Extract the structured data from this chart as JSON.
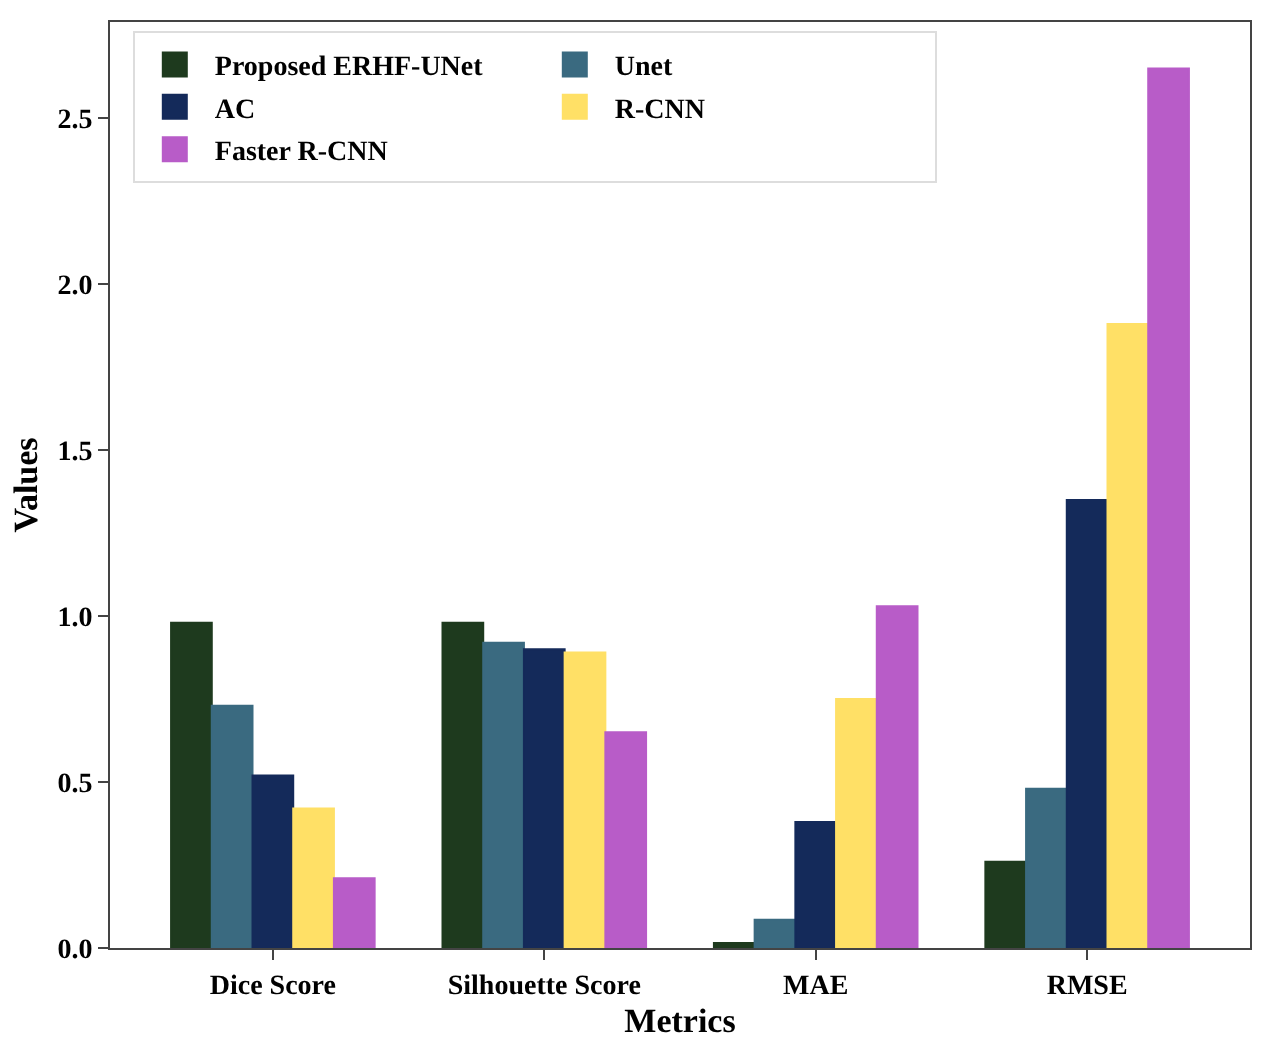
{
  "chart_data": {
    "type": "bar",
    "xlabel": "Metrics",
    "ylabel": "Values",
    "categories": [
      "Dice Score",
      "Silhouette Score",
      "MAE",
      "RMSE"
    ],
    "series": [
      {
        "name": "Proposed ERHF-UNet",
        "color": "#1e3a1e",
        "values": [
          0.98,
          0.98,
          0.015,
          0.26
        ]
      },
      {
        "name": "Unet",
        "color": "#3a6a80",
        "values": [
          0.73,
          0.92,
          0.085,
          0.48
        ]
      },
      {
        "name": "AC",
        "color": "#142a5a",
        "values": [
          0.52,
          0.9,
          0.38,
          1.35
        ]
      },
      {
        "name": "R-CNN",
        "color": "#ffe066",
        "values": [
          0.42,
          0.89,
          0.75,
          1.88
        ]
      },
      {
        "name": "Faster R-CNN",
        "color": "#b85cc8",
        "values": [
          0.21,
          0.65,
          1.03,
          2.65
        ]
      }
    ],
    "ylim": [
      0,
      2.79
    ],
    "yticks": [
      {
        "value": 0,
        "label": "0.0"
      },
      {
        "value": 0.5,
        "label": "0.5"
      },
      {
        "value": 1,
        "label": "1.0"
      },
      {
        "value": 1.5,
        "label": "1.5"
      },
      {
        "value": 2,
        "label": "2.0"
      },
      {
        "value": 2.5,
        "label": "2.5"
      }
    ],
    "legend": "top left"
  }
}
